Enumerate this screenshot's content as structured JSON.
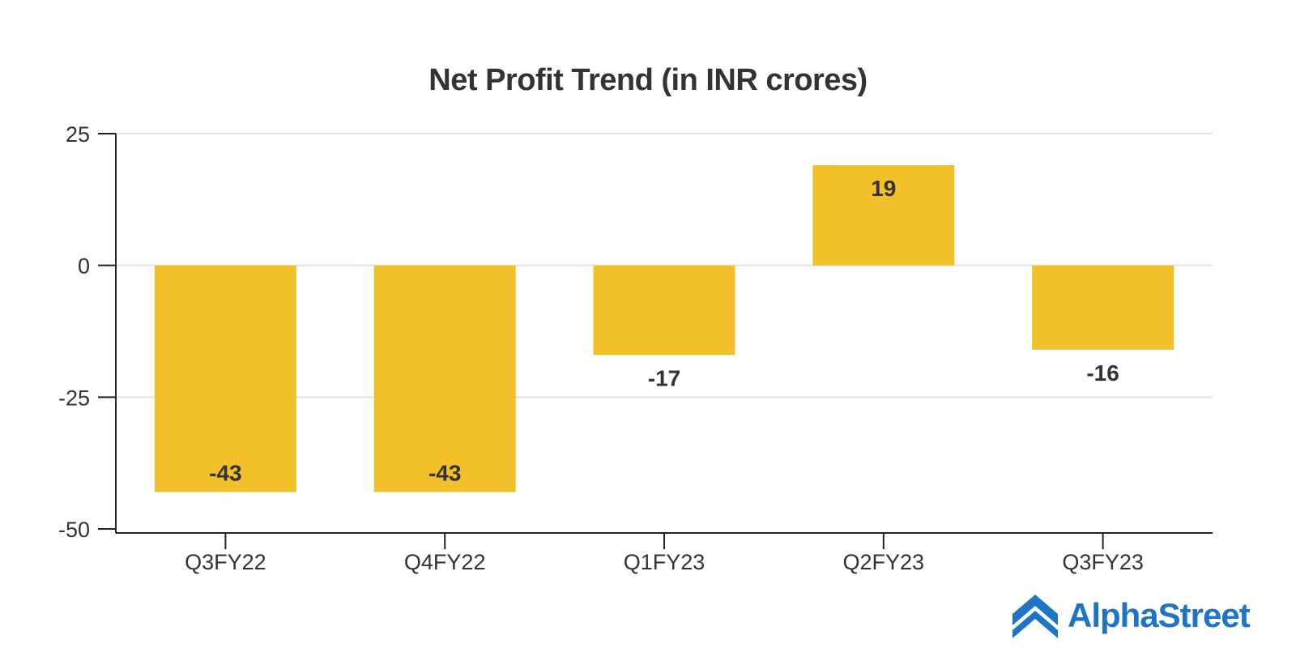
{
  "colors": {
    "bar": "#F2C029",
    "text": "#333333",
    "grid": "#E3E3E3",
    "axis": "#222222",
    "brand": "#1E75C6"
  },
  "chart_data": {
    "type": "bar",
    "title": "Net Profit Trend (in INR crores)",
    "xlabel": "",
    "ylabel": "",
    "categories": [
      "Q3FY22",
      "Q4FY22",
      "Q1FY23",
      "Q2FY23",
      "Q3FY23"
    ],
    "values": [
      -43,
      -43,
      -17,
      19,
      -16
    ],
    "data_labels": [
      "-43",
      "-43",
      "-17",
      "19",
      "-16"
    ],
    "ylim": [
      -50,
      25
    ],
    "yticks": [
      25,
      0,
      -25,
      -50
    ],
    "grid": true,
    "legend": "none"
  },
  "brand": {
    "name": "AlphaStreet",
    "logo_icon": "alphastreet-chevron-icon"
  }
}
